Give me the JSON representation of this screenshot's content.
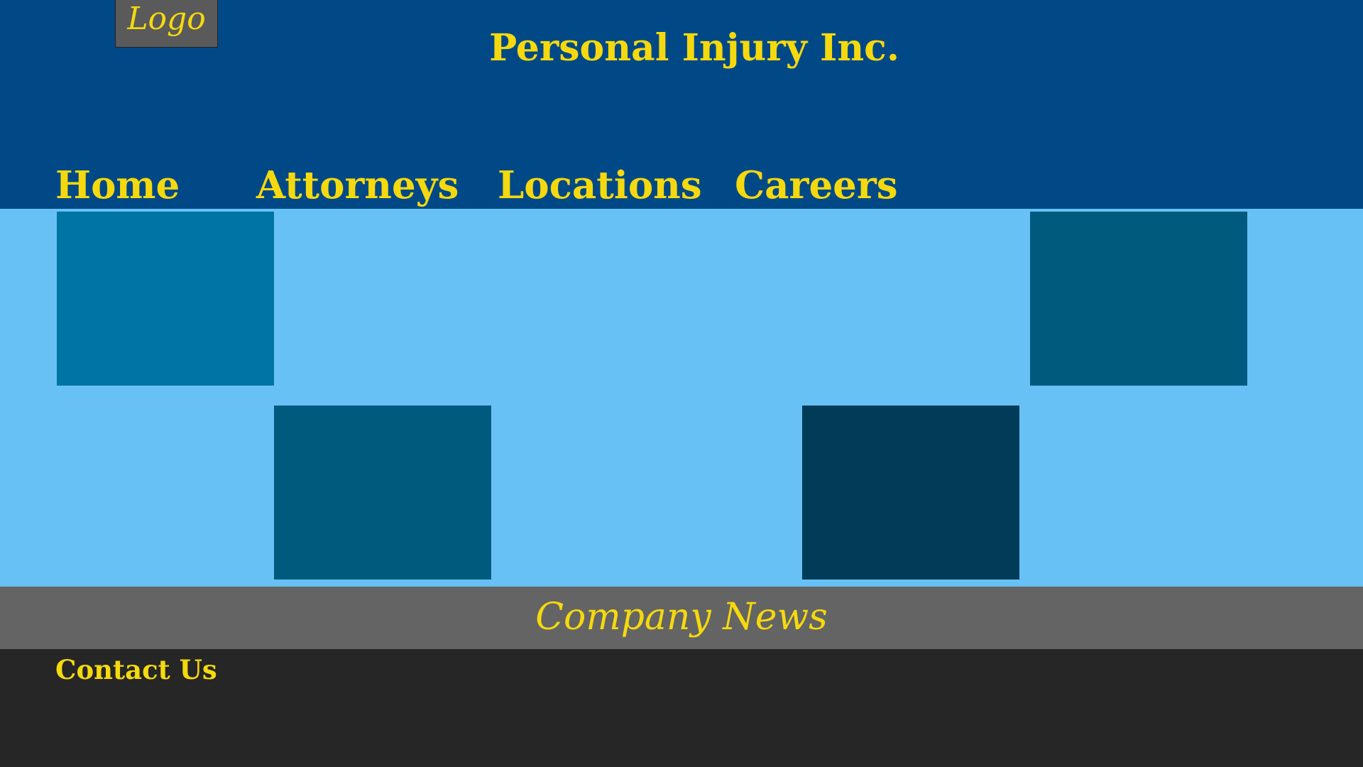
{
  "header": {
    "logo_text": "Logo",
    "title": "Personal Injury Inc.",
    "nav": {
      "items": [
        {
          "label": "Home"
        },
        {
          "label": "Attorneys"
        },
        {
          "label": "Locations"
        },
        {
          "label": "Careers"
        }
      ]
    }
  },
  "hero": {
    "tiles": [
      {
        "color": "#0074a4"
      },
      {
        "color": "#005a7e"
      },
      {
        "color": "#005a7e"
      },
      {
        "color": "#003b58"
      }
    ]
  },
  "news": {
    "label": "Company News"
  },
  "footer": {
    "contact_label": "Contact Us"
  },
  "theme": {
    "header_bg": "#004986",
    "hero_bg": "#68c1f5",
    "news_bg": "#646464",
    "footer_bg": "#262626",
    "text_accent": "#f5d90e"
  }
}
